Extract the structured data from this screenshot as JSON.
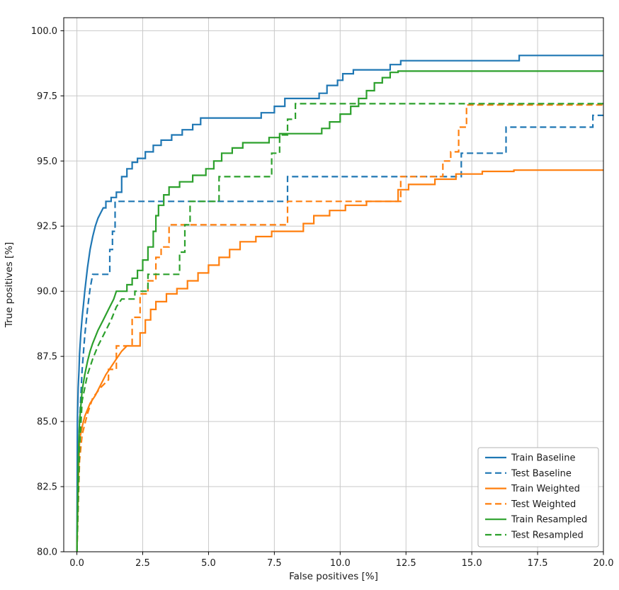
{
  "chart_data": {
    "type": "line",
    "title": "",
    "xlabel": "False positives [%]",
    "ylabel": "True positives [%]",
    "xlim": [
      -0.5,
      20
    ],
    "ylim": [
      80,
      100.5
    ],
    "grid": true,
    "legend_position": "lower right",
    "x_ticks": [
      {
        "v": 0,
        "label": "0.0"
      },
      {
        "v": 2.5,
        "label": "2.5"
      },
      {
        "v": 5,
        "label": "5.0"
      },
      {
        "v": 7.5,
        "label": "7.5"
      },
      {
        "v": 10,
        "label": "10.0"
      },
      {
        "v": 12.5,
        "label": "12.5"
      },
      {
        "v": 15,
        "label": "15.0"
      },
      {
        "v": 17.5,
        "label": "17.5"
      },
      {
        "v": 20,
        "label": "20.0"
      }
    ],
    "y_ticks": [
      {
        "v": 80,
        "label": "80.0"
      },
      {
        "v": 82.5,
        "label": "82.5"
      },
      {
        "v": 85,
        "label": "85.0"
      },
      {
        "v": 87.5,
        "label": "87.5"
      },
      {
        "v": 90,
        "label": "90.0"
      },
      {
        "v": 92.5,
        "label": "92.5"
      },
      {
        "v": 95,
        "label": "95.0"
      },
      {
        "v": 97.5,
        "label": "97.5"
      },
      {
        "v": 100,
        "label": "100.0"
      }
    ],
    "series": [
      {
        "name": "Train Baseline",
        "color": "#1f77b4",
        "style": "solid",
        "points": [
          [
            0,
            80
          ],
          [
            0.02,
            85.0
          ],
          [
            0.05,
            86.3
          ],
          [
            0.08,
            87.0
          ],
          [
            0.1,
            87.6
          ],
          [
            0.15,
            88.4
          ],
          [
            0.2,
            89.0
          ],
          [
            0.25,
            89.5
          ],
          [
            0.3,
            90.0
          ],
          [
            0.4,
            90.9
          ],
          [
            0.5,
            91.6
          ],
          [
            0.6,
            92.1
          ],
          [
            0.7,
            92.5
          ],
          [
            0.8,
            92.8
          ],
          [
            0.9,
            93.0
          ],
          [
            1.0,
            93.2
          ],
          [
            1.1,
            93.2
          ],
          [
            1.1,
            93.45
          ],
          [
            1.3,
            93.45
          ],
          [
            1.3,
            93.6
          ],
          [
            1.5,
            93.6
          ],
          [
            1.5,
            93.8
          ],
          [
            1.7,
            93.8
          ],
          [
            1.7,
            94.4
          ],
          [
            1.9,
            94.4
          ],
          [
            1.9,
            94.7
          ],
          [
            2.1,
            94.7
          ],
          [
            2.1,
            94.95
          ],
          [
            2.3,
            94.95
          ],
          [
            2.3,
            95.1
          ],
          [
            2.6,
            95.1
          ],
          [
            2.6,
            95.35
          ],
          [
            2.9,
            95.35
          ],
          [
            2.9,
            95.6
          ],
          [
            3.2,
            95.6
          ],
          [
            3.2,
            95.8
          ],
          [
            3.6,
            95.8
          ],
          [
            3.6,
            96.0
          ],
          [
            4.0,
            96.0
          ],
          [
            4.0,
            96.2
          ],
          [
            4.4,
            96.2
          ],
          [
            4.4,
            96.4
          ],
          [
            4.7,
            96.4
          ],
          [
            4.7,
            96.65
          ],
          [
            7.0,
            96.65
          ],
          [
            7.0,
            96.85
          ],
          [
            7.5,
            96.85
          ],
          [
            7.5,
            97.1
          ],
          [
            7.9,
            97.1
          ],
          [
            7.9,
            97.4
          ],
          [
            9.2,
            97.4
          ],
          [
            9.2,
            97.6
          ],
          [
            9.5,
            97.6
          ],
          [
            9.5,
            97.9
          ],
          [
            9.9,
            97.9
          ],
          [
            9.9,
            98.1
          ],
          [
            10.1,
            98.1
          ],
          [
            10.1,
            98.35
          ],
          [
            10.5,
            98.35
          ],
          [
            10.5,
            98.5
          ],
          [
            11.9,
            98.5
          ],
          [
            11.9,
            98.7
          ],
          [
            12.3,
            98.7
          ],
          [
            12.3,
            98.85
          ],
          [
            16.8,
            98.85
          ],
          [
            16.8,
            99.05
          ],
          [
            20,
            99.05
          ]
        ]
      },
      {
        "name": "Test Baseline",
        "color": "#1f77b4",
        "style": "dashed",
        "points": [
          [
            0,
            80
          ],
          [
            0.05,
            83.5
          ],
          [
            0.1,
            85.0
          ],
          [
            0.2,
            87.0
          ],
          [
            0.3,
            88.3
          ],
          [
            0.4,
            89.3
          ],
          [
            0.5,
            90.1
          ],
          [
            0.6,
            90.65
          ],
          [
            1.25,
            90.65
          ],
          [
            1.25,
            91.6
          ],
          [
            1.35,
            91.6
          ],
          [
            1.35,
            92.3
          ],
          [
            1.45,
            92.3
          ],
          [
            1.45,
            93.45
          ],
          [
            8.0,
            93.45
          ],
          [
            8.0,
            94.4
          ],
          [
            14.6,
            94.4
          ],
          [
            14.6,
            95.3
          ],
          [
            16.3,
            95.3
          ],
          [
            16.3,
            96.3
          ],
          [
            19.6,
            96.3
          ],
          [
            19.6,
            96.75
          ],
          [
            20,
            96.75
          ]
        ]
      },
      {
        "name": "Train Weighted",
        "color": "#ff7f0e",
        "style": "solid",
        "points": [
          [
            0,
            80
          ],
          [
            0.05,
            82.5
          ],
          [
            0.1,
            84.3
          ],
          [
            0.2,
            84.8
          ],
          [
            0.3,
            85.2
          ],
          [
            0.5,
            85.7
          ],
          [
            0.7,
            86.0
          ],
          [
            0.9,
            86.4
          ],
          [
            1.1,
            86.8
          ],
          [
            1.3,
            87.1
          ],
          [
            1.5,
            87.4
          ],
          [
            1.7,
            87.7
          ],
          [
            1.9,
            87.9
          ],
          [
            2.4,
            87.9
          ],
          [
            2.4,
            88.4
          ],
          [
            2.6,
            88.4
          ],
          [
            2.6,
            88.9
          ],
          [
            2.8,
            88.9
          ],
          [
            2.8,
            89.3
          ],
          [
            3.0,
            89.3
          ],
          [
            3.0,
            89.6
          ],
          [
            3.4,
            89.6
          ],
          [
            3.4,
            89.9
          ],
          [
            3.8,
            89.9
          ],
          [
            3.8,
            90.1
          ],
          [
            4.2,
            90.1
          ],
          [
            4.2,
            90.4
          ],
          [
            4.6,
            90.4
          ],
          [
            4.6,
            90.7
          ],
          [
            5.0,
            90.7
          ],
          [
            5.0,
            91.0
          ],
          [
            5.4,
            91.0
          ],
          [
            5.4,
            91.3
          ],
          [
            5.8,
            91.3
          ],
          [
            5.8,
            91.6
          ],
          [
            6.2,
            91.6
          ],
          [
            6.2,
            91.9
          ],
          [
            6.8,
            91.9
          ],
          [
            6.8,
            92.1
          ],
          [
            7.4,
            92.1
          ],
          [
            7.4,
            92.3
          ],
          [
            8.6,
            92.3
          ],
          [
            8.6,
            92.6
          ],
          [
            9.0,
            92.6
          ],
          [
            9.0,
            92.9
          ],
          [
            9.6,
            92.9
          ],
          [
            9.6,
            93.1
          ],
          [
            10.2,
            93.1
          ],
          [
            10.2,
            93.3
          ],
          [
            11.0,
            93.3
          ],
          [
            11.0,
            93.45
          ],
          [
            12.2,
            93.45
          ],
          [
            12.2,
            93.9
          ],
          [
            12.6,
            93.9
          ],
          [
            12.6,
            94.1
          ],
          [
            13.6,
            94.1
          ],
          [
            13.6,
            94.3
          ],
          [
            14.4,
            94.3
          ],
          [
            14.4,
            94.5
          ],
          [
            15.4,
            94.5
          ],
          [
            15.4,
            94.6
          ],
          [
            16.6,
            94.6
          ],
          [
            16.6,
            94.65
          ],
          [
            20,
            94.65
          ]
        ]
      },
      {
        "name": "Test Weighted",
        "color": "#ff7f0e",
        "style": "dashed",
        "points": [
          [
            0,
            80
          ],
          [
            0.1,
            83.5
          ],
          [
            0.2,
            84.5
          ],
          [
            0.4,
            85.3
          ],
          [
            0.6,
            85.9
          ],
          [
            0.9,
            86.3
          ],
          [
            1.2,
            86.6
          ],
          [
            1.2,
            87.0
          ],
          [
            1.5,
            87.0
          ],
          [
            1.5,
            87.9
          ],
          [
            2.1,
            87.9
          ],
          [
            2.1,
            89.0
          ],
          [
            2.4,
            89.0
          ],
          [
            2.4,
            89.9
          ],
          [
            2.7,
            89.9
          ],
          [
            2.7,
            90.4
          ],
          [
            3.0,
            90.4
          ],
          [
            3.0,
            91.3
          ],
          [
            3.2,
            91.3
          ],
          [
            3.2,
            91.7
          ],
          [
            3.5,
            91.7
          ],
          [
            3.5,
            92.55
          ],
          [
            8.0,
            92.55
          ],
          [
            8.0,
            93.45
          ],
          [
            12.3,
            93.45
          ],
          [
            12.3,
            94.4
          ],
          [
            13.9,
            94.4
          ],
          [
            13.9,
            95.0
          ],
          [
            14.2,
            95.0
          ],
          [
            14.2,
            95.35
          ],
          [
            14.5,
            95.35
          ],
          [
            14.5,
            96.3
          ],
          [
            14.8,
            96.3
          ],
          [
            14.8,
            97.15
          ],
          [
            20,
            97.15
          ]
        ]
      },
      {
        "name": "Train Resampled",
        "color": "#2ca02c",
        "style": "solid",
        "points": [
          [
            0,
            80
          ],
          [
            0.05,
            83.5
          ],
          [
            0.1,
            85.0
          ],
          [
            0.2,
            86.2
          ],
          [
            0.3,
            86.8
          ],
          [
            0.4,
            87.3
          ],
          [
            0.5,
            87.7
          ],
          [
            0.6,
            88.0
          ],
          [
            0.8,
            88.5
          ],
          [
            1.0,
            88.9
          ],
          [
            1.2,
            89.3
          ],
          [
            1.4,
            89.7
          ],
          [
            1.5,
            90.0
          ],
          [
            1.9,
            90.0
          ],
          [
            1.9,
            90.25
          ],
          [
            2.1,
            90.25
          ],
          [
            2.1,
            90.5
          ],
          [
            2.3,
            90.5
          ],
          [
            2.3,
            90.8
          ],
          [
            2.5,
            90.8
          ],
          [
            2.5,
            91.2
          ],
          [
            2.7,
            91.2
          ],
          [
            2.7,
            91.7
          ],
          [
            2.9,
            91.7
          ],
          [
            2.9,
            92.3
          ],
          [
            3.0,
            92.3
          ],
          [
            3.0,
            92.9
          ],
          [
            3.1,
            92.9
          ],
          [
            3.1,
            93.3
          ],
          [
            3.3,
            93.3
          ],
          [
            3.3,
            93.7
          ],
          [
            3.5,
            93.7
          ],
          [
            3.5,
            94.0
          ],
          [
            3.9,
            94.0
          ],
          [
            3.9,
            94.2
          ],
          [
            4.4,
            94.2
          ],
          [
            4.4,
            94.45
          ],
          [
            4.9,
            94.45
          ],
          [
            4.9,
            94.7
          ],
          [
            5.2,
            94.7
          ],
          [
            5.2,
            95.0
          ],
          [
            5.5,
            95.0
          ],
          [
            5.5,
            95.3
          ],
          [
            5.9,
            95.3
          ],
          [
            5.9,
            95.5
          ],
          [
            6.3,
            95.5
          ],
          [
            6.3,
            95.7
          ],
          [
            7.3,
            95.7
          ],
          [
            7.3,
            95.9
          ],
          [
            7.7,
            95.9
          ],
          [
            7.7,
            96.05
          ],
          [
            9.3,
            96.05
          ],
          [
            9.3,
            96.25
          ],
          [
            9.6,
            96.25
          ],
          [
            9.6,
            96.5
          ],
          [
            10.0,
            96.5
          ],
          [
            10.0,
            96.8
          ],
          [
            10.4,
            96.8
          ],
          [
            10.4,
            97.1
          ],
          [
            10.7,
            97.1
          ],
          [
            10.7,
            97.4
          ],
          [
            11.0,
            97.4
          ],
          [
            11.0,
            97.7
          ],
          [
            11.3,
            97.7
          ],
          [
            11.3,
            98.0
          ],
          [
            11.6,
            98.0
          ],
          [
            11.6,
            98.2
          ],
          [
            11.9,
            98.2
          ],
          [
            11.9,
            98.4
          ],
          [
            12.2,
            98.4
          ],
          [
            12.2,
            98.45
          ],
          [
            20,
            98.45
          ]
        ]
      },
      {
        "name": "Test Resampled",
        "color": "#2ca02c",
        "style": "dashed",
        "points": [
          [
            0,
            80
          ],
          [
            0.1,
            84.0
          ],
          [
            0.2,
            85.8
          ],
          [
            0.4,
            86.8
          ],
          [
            0.6,
            87.4
          ],
          [
            0.8,
            87.9
          ],
          [
            1.0,
            88.3
          ],
          [
            1.3,
            88.9
          ],
          [
            1.5,
            89.4
          ],
          [
            1.7,
            89.7
          ],
          [
            2.2,
            89.7
          ],
          [
            2.2,
            90.0
          ],
          [
            2.7,
            90.0
          ],
          [
            2.7,
            90.65
          ],
          [
            3.9,
            90.65
          ],
          [
            3.9,
            91.5
          ],
          [
            4.1,
            91.5
          ],
          [
            4.1,
            92.55
          ],
          [
            4.3,
            92.55
          ],
          [
            4.3,
            93.45
          ],
          [
            5.4,
            93.45
          ],
          [
            5.4,
            94.4
          ],
          [
            7.4,
            94.4
          ],
          [
            7.4,
            95.3
          ],
          [
            7.7,
            95.3
          ],
          [
            7.7,
            96.0
          ],
          [
            8.0,
            96.0
          ],
          [
            8.0,
            96.6
          ],
          [
            8.3,
            96.6
          ],
          [
            8.3,
            97.2
          ],
          [
            20,
            97.2
          ]
        ]
      }
    ]
  }
}
